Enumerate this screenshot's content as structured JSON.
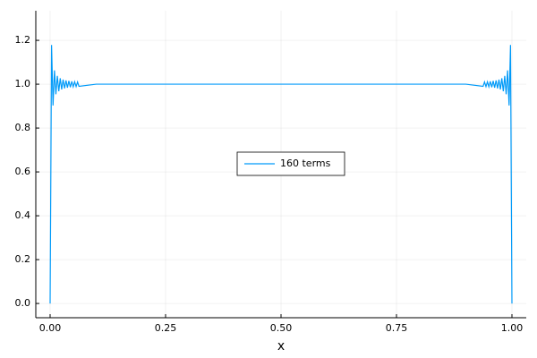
{
  "chart_data": {
    "type": "line",
    "xlabel": "x",
    "x": [
      0,
      0.0031,
      0.0063,
      0.0094,
      0.0125,
      0.0156,
      0.0188,
      0.0219,
      0.025,
      0.0281,
      0.0313,
      0.0344,
      0.0375,
      0.0406,
      0.0438,
      0.0469,
      0.05,
      0.0531,
      0.0563,
      0.0594,
      0.0625,
      0.1,
      0.2,
      0.3,
      0.4,
      0.5,
      0.6,
      0.7,
      0.8,
      0.9,
      0.9375,
      0.9406,
      0.9438,
      0.9469,
      0.95,
      0.9531,
      0.9563,
      0.9594,
      0.9625,
      0.9656,
      0.9688,
      0.9719,
      0.975,
      0.9781,
      0.9813,
      0.9844,
      0.9875,
      0.9906,
      0.9938,
      0.9969,
      1
    ],
    "series": [
      {
        "name": "160 terms",
        "color": "#009af9",
        "values": [
          0,
          1.179,
          0.903,
          1.063,
          0.954,
          1.038,
          0.968,
          1.027,
          0.976,
          1.021,
          0.981,
          1.017,
          0.984,
          1.015,
          0.986,
          1.013,
          0.988,
          1.011,
          0.989,
          1.01,
          0.99,
          1.0,
          1.0,
          1.0,
          1.0,
          1.0,
          1.0,
          1.0,
          1.0,
          1.0,
          0.99,
          1.01,
          0.989,
          1.011,
          0.988,
          1.013,
          0.986,
          1.015,
          0.984,
          1.017,
          0.981,
          1.021,
          0.976,
          1.027,
          0.968,
          1.038,
          0.954,
          1.063,
          0.903,
          1.179,
          0
        ]
      }
    ],
    "xlim": [
      -0.031,
      1.031
    ],
    "xticks": [
      {
        "value": 0,
        "label": "0.00"
      },
      0.25,
      {
        "value": 0.5,
        "label": "0.50"
      },
      0.75,
      {
        "value": 1,
        "label": "1.00"
      }
    ],
    "ylim": [
      -0.065,
      1.335
    ],
    "yticks": [
      {
        "value": 0,
        "label": "0.0"
      },
      0.2,
      0.4,
      0.6,
      0.8,
      {
        "value": 1,
        "label": "1.0"
      },
      1.2
    ],
    "grid": true,
    "legend_position": "center"
  }
}
